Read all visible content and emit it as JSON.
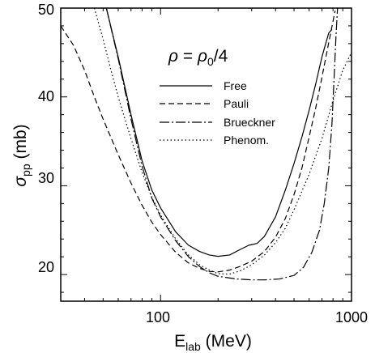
{
  "chart_data": {
    "type": "line",
    "annotation": {
      "lhs": "ρ",
      "equals": " = ",
      "rhs_main": "ρ",
      "rhs_sub": "0",
      "rhs_tail": "/4"
    },
    "xlabel": {
      "main": "E",
      "sub": "lab",
      "tail": " (MeV)"
    },
    "ylabel": {
      "main": "σ",
      "sub": "pp",
      "tail": " (mb)"
    },
    "x_scale": "log",
    "xlim": [
      30,
      1000
    ],
    "ylim": [
      17,
      50
    ],
    "x_ticks": [
      100,
      1000
    ],
    "x_tick_labels": [
      "100",
      "1000"
    ],
    "y_ticks": [
      20,
      30,
      40,
      50
    ],
    "y_tick_labels": [
      "20",
      "30",
      "40",
      "50"
    ],
    "grid": false,
    "legend_position": "center-top",
    "series": [
      {
        "name": "Free",
        "dash": "solid",
        "color": "#000000",
        "points": [
          [
            52,
            50
          ],
          [
            60,
            44.5
          ],
          [
            70,
            38
          ],
          [
            80,
            32.8
          ],
          [
            90,
            29.5
          ],
          [
            100,
            27.5
          ],
          [
            120,
            24.8
          ],
          [
            140,
            23.3
          ],
          [
            160,
            22.6
          ],
          [
            180,
            22.2
          ],
          [
            200,
            22.05
          ],
          [
            230,
            22.2
          ],
          [
            260,
            22.8
          ],
          [
            290,
            23.3
          ],
          [
            320,
            23.5
          ],
          [
            350,
            24.3
          ],
          [
            400,
            26.5
          ],
          [
            450,
            29.5
          ],
          [
            500,
            32.5
          ],
          [
            550,
            35.5
          ],
          [
            600,
            38.5
          ],
          [
            650,
            41.5
          ],
          [
            700,
            44.5
          ],
          [
            760,
            47.2
          ],
          [
            790,
            47.6
          ]
        ]
      },
      {
        "name": "Pauli",
        "dash": "dashed",
        "color": "#000000",
        "points": [
          [
            30,
            48
          ],
          [
            35,
            45.8
          ],
          [
            40,
            43
          ],
          [
            45,
            40
          ],
          [
            50,
            37.5
          ],
          [
            60,
            33.5
          ],
          [
            70,
            30.3
          ],
          [
            80,
            27.8
          ],
          [
            90,
            25.9
          ],
          [
            100,
            24.5
          ],
          [
            120,
            22.5
          ],
          [
            140,
            21.3
          ],
          [
            160,
            20.7
          ],
          [
            180,
            20.35
          ],
          [
            200,
            20.3
          ],
          [
            230,
            20.5
          ],
          [
            260,
            20.9
          ],
          [
            300,
            21.5
          ],
          [
            350,
            22.6
          ],
          [
            400,
            24.2
          ],
          [
            450,
            26.3
          ],
          [
            500,
            29
          ],
          [
            550,
            32
          ],
          [
            600,
            35.5
          ],
          [
            650,
            38.8
          ],
          [
            700,
            42.2
          ],
          [
            750,
            45.5
          ],
          [
            800,
            48.5
          ],
          [
            820,
            49.7
          ]
        ]
      },
      {
        "name": "Brueckner",
        "dash": "dashdot",
        "color": "#000000",
        "points": [
          [
            52,
            50
          ],
          [
            60,
            44.3
          ],
          [
            70,
            37.5
          ],
          [
            80,
            32.2
          ],
          [
            90,
            28.6
          ],
          [
            100,
            26.5
          ],
          [
            120,
            23.8
          ],
          [
            140,
            22
          ],
          [
            160,
            20.9
          ],
          [
            180,
            20.2
          ],
          [
            200,
            19.8
          ],
          [
            250,
            19.5
          ],
          [
            300,
            19.4
          ],
          [
            350,
            19.4
          ],
          [
            420,
            19.5
          ],
          [
            500,
            19.9
          ],
          [
            560,
            20.8
          ],
          [
            620,
            22.5
          ],
          [
            680,
            25
          ],
          [
            720,
            28
          ],
          [
            760,
            32
          ],
          [
            790,
            37
          ],
          [
            810,
            42
          ],
          [
            830,
            47
          ],
          [
            845,
            50
          ]
        ]
      },
      {
        "name": "Phenom.",
        "dash": "dotted",
        "color": "#000000",
        "points": [
          [
            45,
            50
          ],
          [
            50,
            46.5
          ],
          [
            55,
            43
          ],
          [
            60,
            40
          ],
          [
            70,
            35.3
          ],
          [
            80,
            31.5
          ],
          [
            90,
            28.7
          ],
          [
            100,
            26.7
          ],
          [
            120,
            24
          ],
          [
            140,
            22.2
          ],
          [
            160,
            21.1
          ],
          [
            180,
            20.5
          ],
          [
            200,
            20.1
          ],
          [
            230,
            20.05
          ],
          [
            260,
            20.4
          ],
          [
            300,
            21.1
          ],
          [
            350,
            22.2
          ],
          [
            400,
            23.6
          ],
          [
            450,
            25.2
          ],
          [
            500,
            27.3
          ],
          [
            600,
            31.3
          ],
          [
            700,
            35.3
          ],
          [
            800,
            39.6
          ],
          [
            900,
            43
          ],
          [
            1000,
            45
          ]
        ]
      }
    ]
  }
}
